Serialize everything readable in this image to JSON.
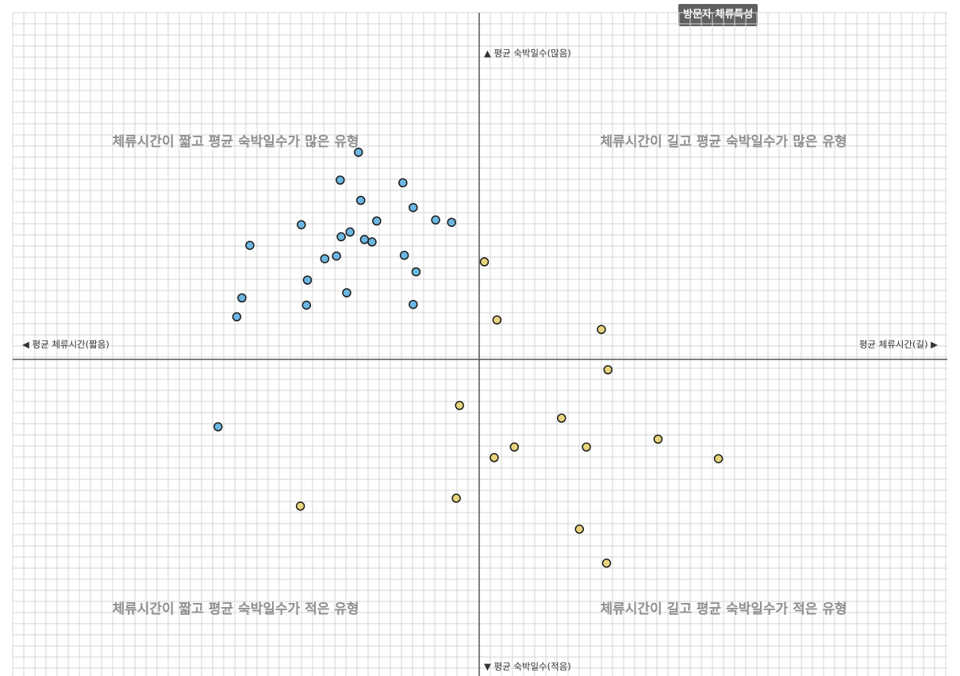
{
  "title": "방문자 체류특성",
  "axes": {
    "y_top_label": "▲ 평균 숙박일수(많음)",
    "y_bottom_label": "▼ 평균 숙박일수(적음)",
    "x_left_label": "◀ 평균 체류시간(짧음)",
    "x_right_label": "평균 체류시간(길) ▶"
  },
  "quadrants": {
    "top_left": "체류시간이 짧고 평균 숙박일수가 많은 유형",
    "top_right": "체류시간이 길고 평균 숙박일수가 많은 유형",
    "bottom_left": "체류시간이 짧고 평균 숙박일수가 적은 유형",
    "bottom_right": "체류시간이 길고 평균 숙박일수가 적은 유형"
  },
  "colors": {
    "blue_point": "#6cb6e2",
    "yellow_point": "#e8d47c",
    "point_stroke": "#1a1a1a",
    "grid": "#d4d4d4",
    "axis": "#555555",
    "badge_bg": "#5f5f5f"
  },
  "chart_data": {
    "type": "scatter",
    "xlim": [
      -100,
      100
    ],
    "ylim": [
      -100,
      100
    ],
    "grid": true,
    "series": [
      {
        "color": "blue",
        "points": [
          [
            -25.8,
            60.3
          ],
          [
            -29.7,
            52.2
          ],
          [
            -25.3,
            46.3
          ],
          [
            -16.3,
            51.4
          ],
          [
            -14.1,
            44.2
          ],
          [
            -21.9,
            40.3
          ],
          [
            -38.0,
            39.2
          ],
          [
            -27.6,
            37.1
          ],
          [
            -29.5,
            35.7
          ],
          [
            -24.5,
            34.9
          ],
          [
            -22.9,
            34.2
          ],
          [
            -9.3,
            40.6
          ],
          [
            -5.9,
            39.9
          ],
          [
            -49.0,
            33.2
          ],
          [
            -30.5,
            30.1
          ],
          [
            -16.0,
            30.3
          ],
          [
            -33.0,
            29.3
          ],
          [
            -13.5,
            25.5
          ],
          [
            -36.7,
            23.1
          ],
          [
            -50.7,
            17.9
          ],
          [
            -28.3,
            19.4
          ],
          [
            -36.9,
            15.8
          ],
          [
            -14.1,
            16.0
          ],
          [
            -51.8,
            12.4
          ],
          [
            -55.8,
            -19.6
          ]
        ]
      },
      {
        "color": "yellow",
        "points": [
          [
            1.1,
            28.4
          ],
          [
            3.8,
            11.5
          ],
          [
            26.1,
            8.7
          ],
          [
            27.5,
            -3.0
          ],
          [
            -4.2,
            -13.4
          ],
          [
            17.6,
            -17.1
          ],
          [
            38.2,
            -23.2
          ],
          [
            22.9,
            -25.5
          ],
          [
            7.5,
            -25.5
          ],
          [
            3.2,
            -28.6
          ],
          [
            51.1,
            -28.9
          ],
          [
            -4.9,
            -40.4
          ],
          [
            -38.2,
            -42.7
          ],
          [
            21.4,
            -49.4
          ],
          [
            27.2,
            -59.3
          ]
        ]
      }
    ]
  }
}
